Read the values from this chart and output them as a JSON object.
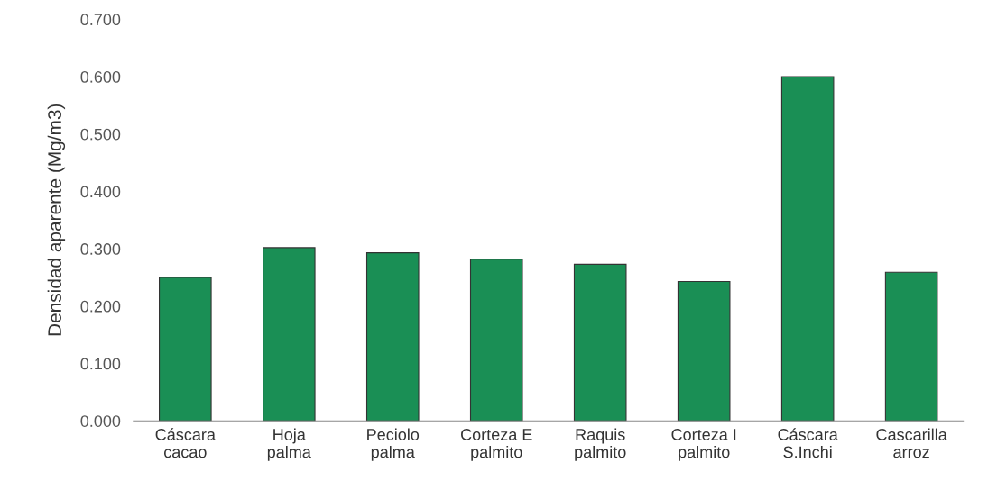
{
  "chart_data": {
    "type": "bar",
    "ylabel": "Densidad aparente (Mg/m3)",
    "categories": [
      "Cáscara\ncacao",
      "Hoja\npalma",
      "Peciolo\npalma",
      "Corteza E\npalmito",
      "Raquis\npalmito",
      "Corteza I\npalmito",
      "Cáscara\nS.Inchi",
      "Cascarilla\narroz"
    ],
    "values": [
      0.25,
      0.302,
      0.293,
      0.282,
      0.273,
      0.243,
      0.6,
      0.259
    ],
    "color": "#1a8f55",
    "ylim": [
      0,
      0.7
    ],
    "yticks": [
      {
        "value": 0,
        "label": "0.000"
      },
      {
        "value": 0.1,
        "label": "0.100"
      },
      {
        "value": 0.2,
        "label": "0.200"
      },
      {
        "value": 0.3,
        "label": "0.300"
      },
      {
        "value": 0.4,
        "label": "0.400"
      },
      {
        "value": 0.5,
        "label": "0.500"
      },
      {
        "value": 0.6,
        "label": "0.600"
      },
      {
        "value": 0.7,
        "label": "0.700"
      }
    ],
    "grid": false
  }
}
